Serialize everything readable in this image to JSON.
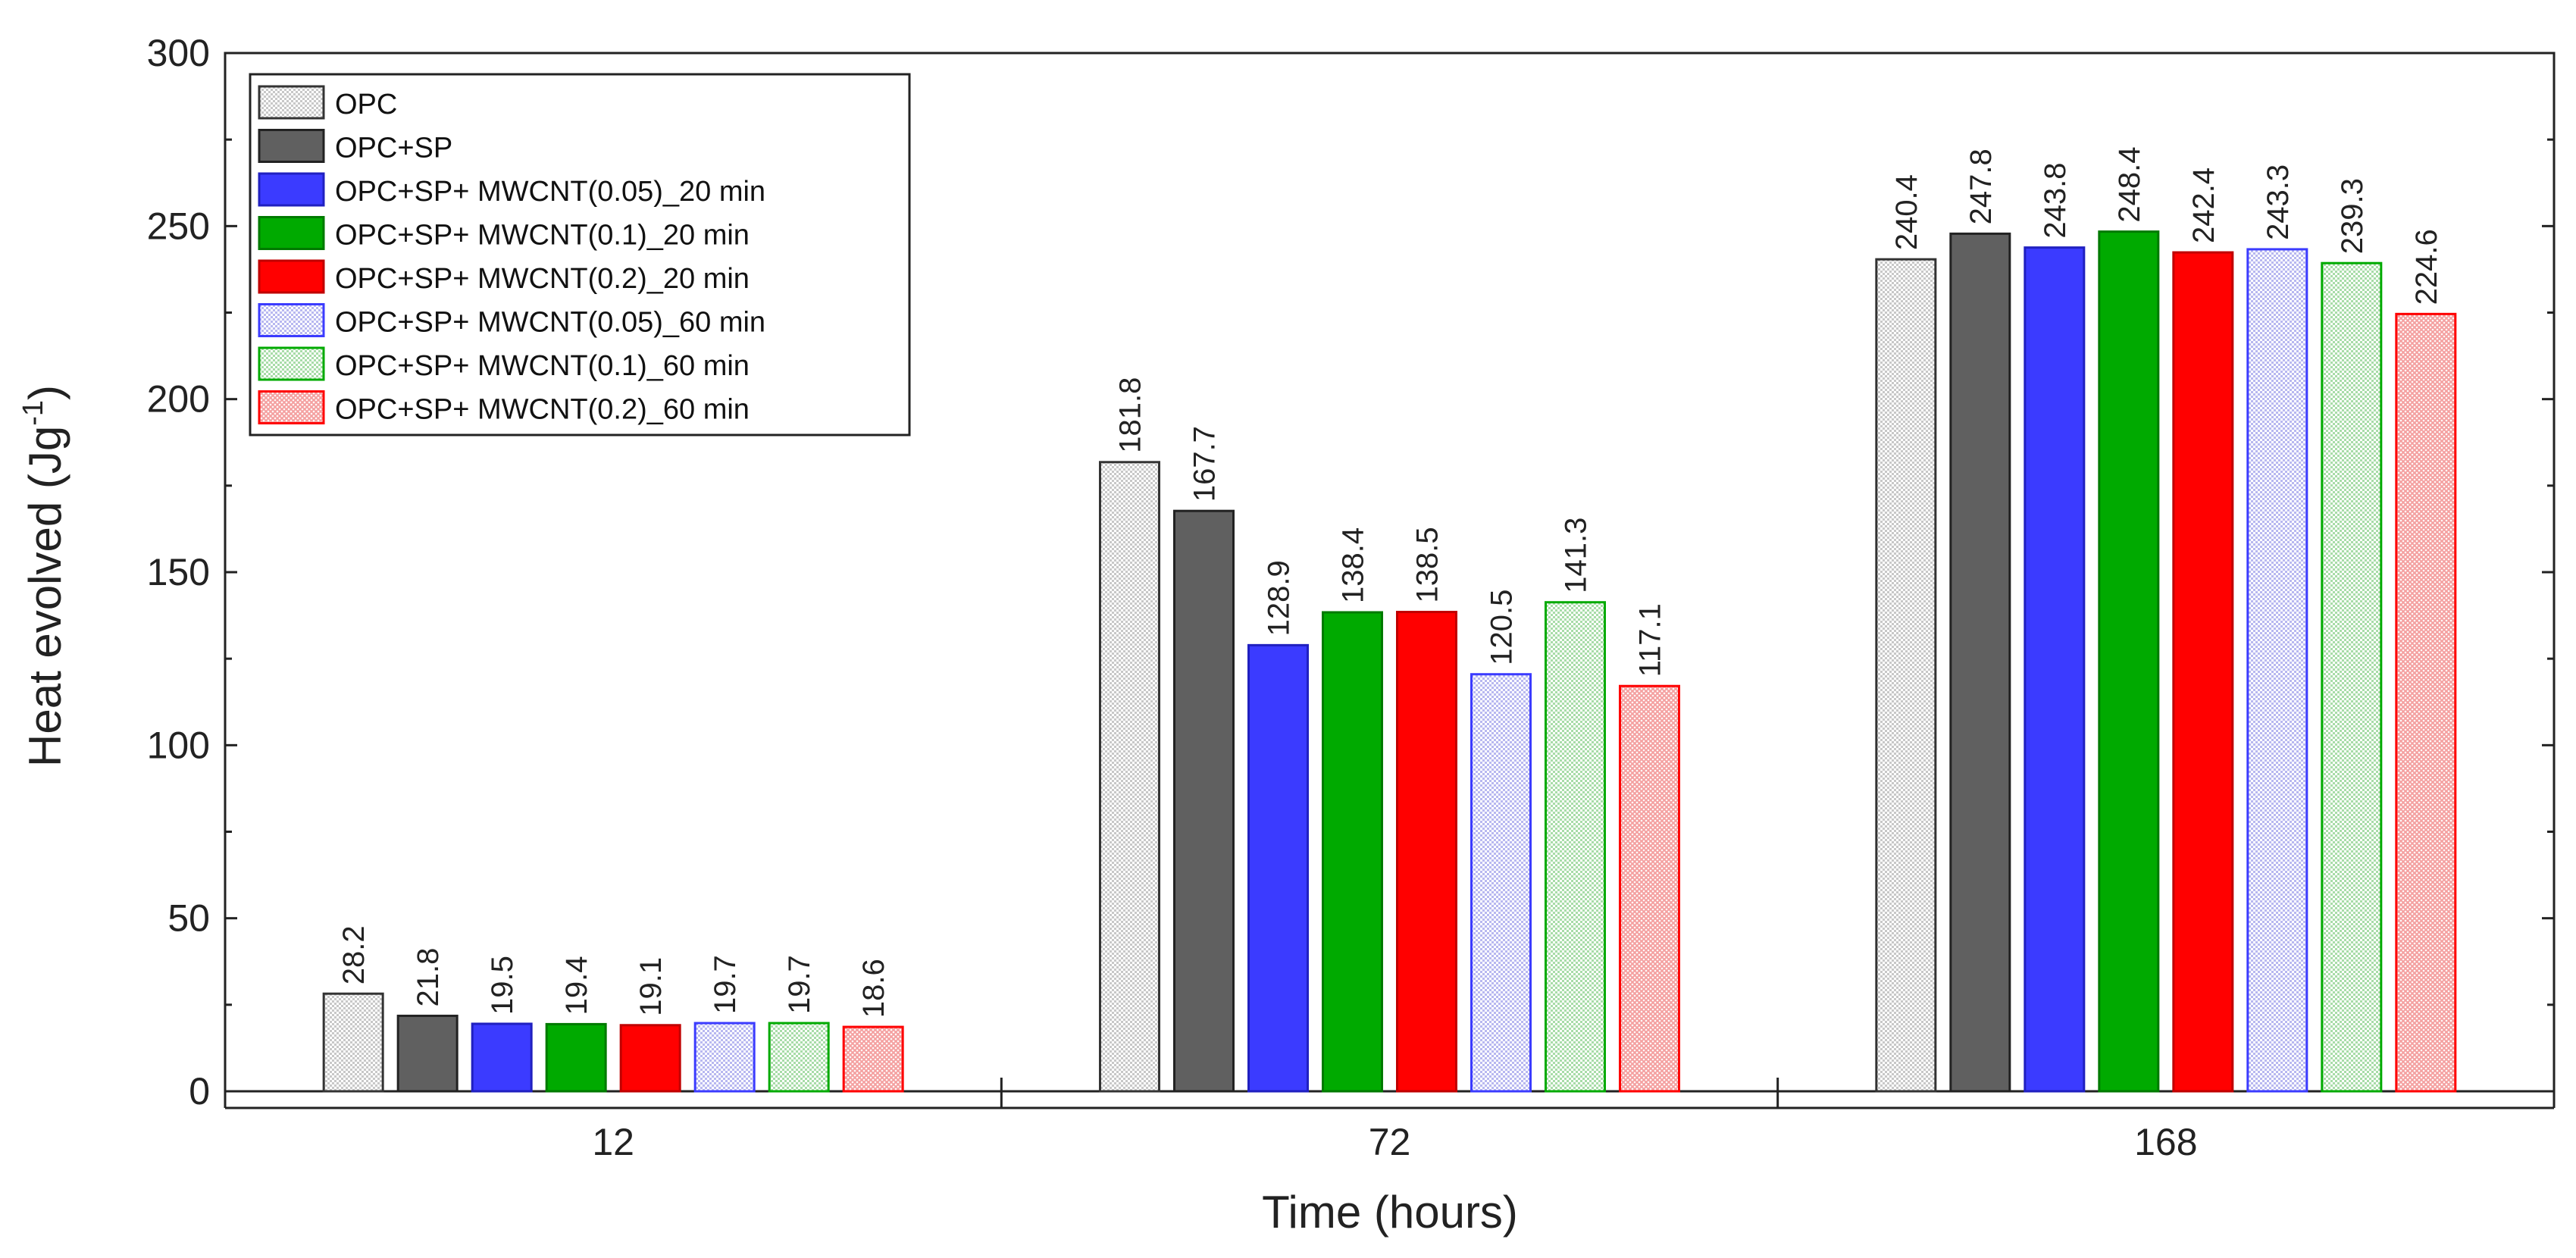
{
  "chart_data": {
    "type": "bar",
    "title": "",
    "xlabel": "Time (hours)",
    "ylabel": "Heat evolved (Jg",
    "ylabel_sup": "-1",
    "ylabel_close": ")",
    "ylim": [
      0,
      300
    ],
    "yticks": [
      0,
      50,
      100,
      150,
      200,
      250,
      300
    ],
    "ytick_labels": [
      "0",
      "50",
      "100",
      "150",
      "200",
      "250",
      "300"
    ],
    "categories": [
      "12",
      "72",
      "168"
    ],
    "legend_position": "top-left",
    "series": [
      {
        "name": "OPC",
        "color": "#c8c8c8",
        "edge": "#333333",
        "pattern": "dots",
        "values": [
          28.2,
          181.8,
          240.4
        ],
        "labels": [
          "28.2",
          "181.8",
          "240.4"
        ]
      },
      {
        "name": "OPC+SP",
        "color": "#606060",
        "edge": "#222222",
        "pattern": "solid",
        "values": [
          21.8,
          167.7,
          247.8
        ],
        "labels": [
          "21.8",
          "167.7",
          "247.8"
        ]
      },
      {
        "name": "OPC+SP+ MWCNT(0.05)_20 min",
        "color": "#3b3bff",
        "edge": "#2020c0",
        "pattern": "solid",
        "values": [
          19.5,
          128.9,
          243.8
        ],
        "labels": [
          "19.5",
          "128.9",
          "243.8"
        ]
      },
      {
        "name": "OPC+SP+ MWCNT(0.1)_20 min",
        "color": "#00aa00",
        "edge": "#007a00",
        "pattern": "solid",
        "values": [
          19.4,
          138.4,
          248.4
        ],
        "labels": [
          "19.4",
          "138.4",
          "248.4"
        ]
      },
      {
        "name": "OPC+SP+ MWCNT(0.2)_20 min",
        "color": "#ff0000",
        "edge": "#c00000",
        "pattern": "solid",
        "values": [
          19.1,
          138.5,
          242.4
        ],
        "labels": [
          "19.1",
          "138.5",
          "242.4"
        ]
      },
      {
        "name": "OPC+SP+ MWCNT(0.05)_60 min",
        "color": "#b8b8f0",
        "edge": "#3b3bff",
        "pattern": "dots",
        "values": [
          19.7,
          120.5,
          243.3
        ],
        "labels": [
          "19.7",
          "120.5",
          "243.3"
        ]
      },
      {
        "name": "OPC+SP+ MWCNT(0.1)_60 min",
        "color": "#a8dca8",
        "edge": "#00aa00",
        "pattern": "dots",
        "values": [
          19.7,
          141.3,
          239.3
        ],
        "labels": [
          "19.7",
          "141.3",
          "239.3"
        ]
      },
      {
        "name": "OPC+SP+ MWCNT(0.2)_60 min",
        "color": "#f4a0a0",
        "edge": "#ff0000",
        "pattern": "crosshatch",
        "values": [
          18.6,
          117.1,
          224.6
        ],
        "labels": [
          "18.6",
          "117.1",
          "224.6"
        ]
      }
    ]
  }
}
